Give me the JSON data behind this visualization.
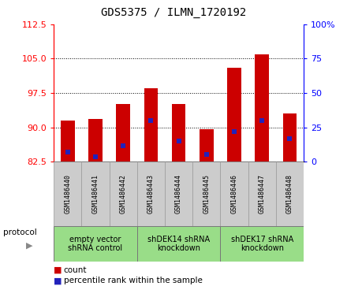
{
  "title": "GDS5375 / ILMN_1720192",
  "samples": [
    "GSM1486440",
    "GSM1486441",
    "GSM1486442",
    "GSM1486443",
    "GSM1486444",
    "GSM1486445",
    "GSM1486446",
    "GSM1486447",
    "GSM1486448"
  ],
  "bar_tops": [
    91.5,
    91.8,
    95.0,
    98.5,
    95.0,
    89.5,
    103.0,
    106.0,
    93.0
  ],
  "bar_base": 82.5,
  "blue_values": [
    84.5,
    83.5,
    86.0,
    91.5,
    87.0,
    84.0,
    89.0,
    91.5,
    87.5
  ],
  "ylim_left": [
    82.5,
    112.5
  ],
  "ylim_right": [
    0,
    100
  ],
  "yticks_left": [
    82.5,
    90.0,
    97.5,
    105.0,
    112.5
  ],
  "yticks_right": [
    0,
    25,
    50,
    75,
    100
  ],
  "bar_color": "#cc0000",
  "blue_color": "#2222bb",
  "bar_width": 0.5,
  "blue_marker_size": 4,
  "hgrid_ticks": [
    90.0,
    97.5,
    105.0
  ],
  "groups": [
    {
      "label": "empty vector\nshRNA control",
      "start": 0,
      "end": 3,
      "color": "#99dd88"
    },
    {
      "label": "shDEK14 shRNA\nknockdown",
      "start": 3,
      "end": 6,
      "color": "#99dd88"
    },
    {
      "label": "shDEK17 shRNA\nknockdown",
      "start": 6,
      "end": 9,
      "color": "#99dd88"
    }
  ],
  "protocol_label": "protocol",
  "legend_count_label": "count",
  "legend_pct_label": "percentile rank within the sample",
  "tickbox_color": "#cccccc",
  "tickbox_edge": "#999999"
}
